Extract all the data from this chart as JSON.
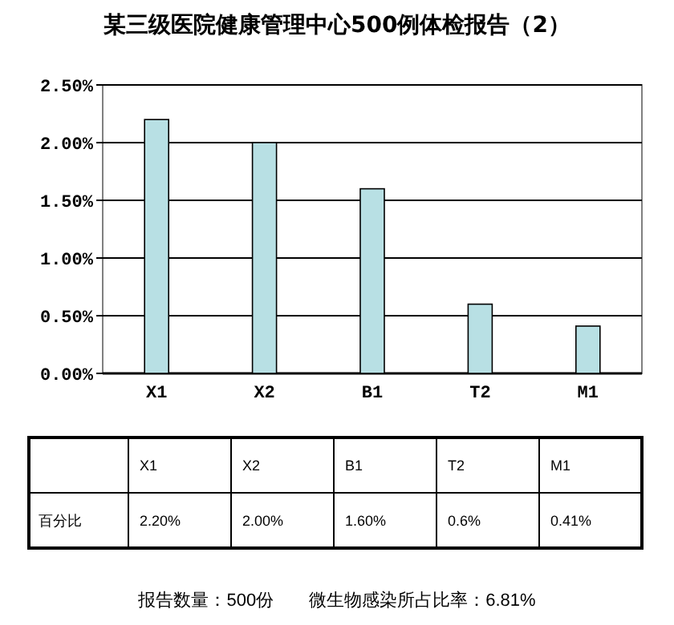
{
  "chart_data": {
    "type": "bar",
    "title": "某三级医院健康管理中心500例体检报告（2）",
    "categories": [
      "X1",
      "X2",
      "B1",
      "T2",
      "M1"
    ],
    "series": [
      {
        "name": "百分比",
        "color": "#b8e0e4",
        "values": [
          2.2,
          2.0,
          1.6,
          0.6,
          0.41
        ],
        "value_labels": [
          "2.20%",
          "2.00%",
          "1.60%",
          "0.6%",
          "0.41%"
        ]
      }
    ],
    "ylim": [
      0,
      2.5
    ],
    "yticks": [
      {
        "value": 0,
        "label": "0.00%"
      },
      {
        "value": 0.5,
        "label": "0.50%"
      },
      {
        "value": 1,
        "label": "1.00%"
      },
      {
        "value": 1.5,
        "label": "1.50%"
      },
      {
        "value": 2,
        "label": "2.00%"
      },
      {
        "value": 2.5,
        "label": "2.50%"
      }
    ],
    "grid": "y",
    "annotations": [
      "报告数量：500份　　微生物感染所占比率：6.81%"
    ]
  }
}
